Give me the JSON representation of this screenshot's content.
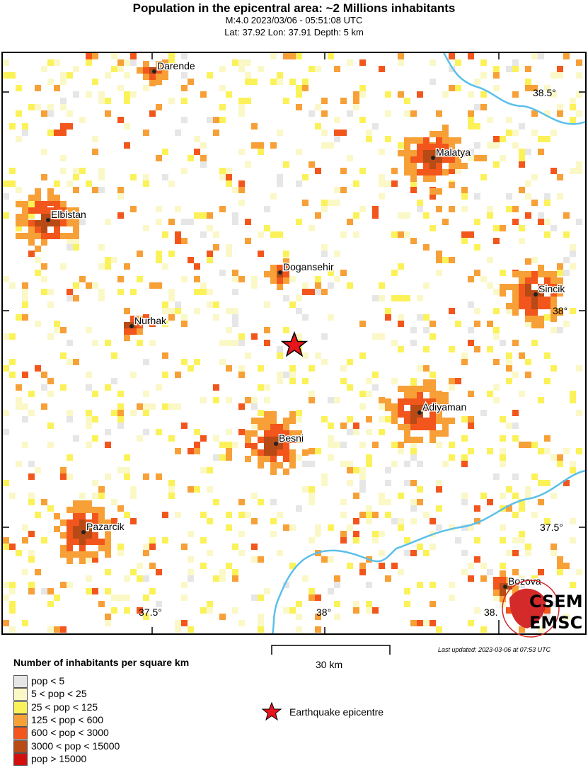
{
  "header": {
    "title": "Population in the epicentral area: ~2 Millions inhabitants",
    "event": "M:4.0 2023/03/06 - 05:51:08 UTC",
    "location": "Lat: 37.92 Lon: 37.91 Depth: 5 km"
  },
  "map": {
    "lat_ticks": [
      "38.5°",
      "38°",
      "37.5°"
    ],
    "lon_ticks": [
      "37.5°",
      "38°",
      "38."
    ],
    "cities": [
      "Darende",
      "Malatya",
      "Elbistan",
      "Dogansehir",
      "Sincik",
      "Nurhak",
      "Adiyaman",
      "Besni",
      "Pazarcik",
      "Bozova"
    ],
    "river_color": "#5bc0eb",
    "epicenter_color": "#e8141b",
    "logo": "CSEM EMSC"
  },
  "scale": {
    "label": "30 km"
  },
  "updated": "Last updated: 2023-03-06 at 07:53 UTC",
  "legend": {
    "title": "Number of inhabitants per square km",
    "items": [
      {
        "label": "pop < 5",
        "color": "#e6e6e6"
      },
      {
        "label": "5 < pop < 25",
        "color": "#fbf8c8"
      },
      {
        "label": "25 < pop < 125",
        "color": "#fbf25a"
      },
      {
        "label": "125 < pop < 600",
        "color": "#f7a037"
      },
      {
        "label": "600 < pop < 3000",
        "color": "#f2561c"
      },
      {
        "label": "3000 < pop < 15000",
        "color": "#b74a15"
      },
      {
        "label": "pop > 15000",
        "color": "#d10f0f"
      }
    ],
    "epicentre": "Earthquake epicentre"
  }
}
